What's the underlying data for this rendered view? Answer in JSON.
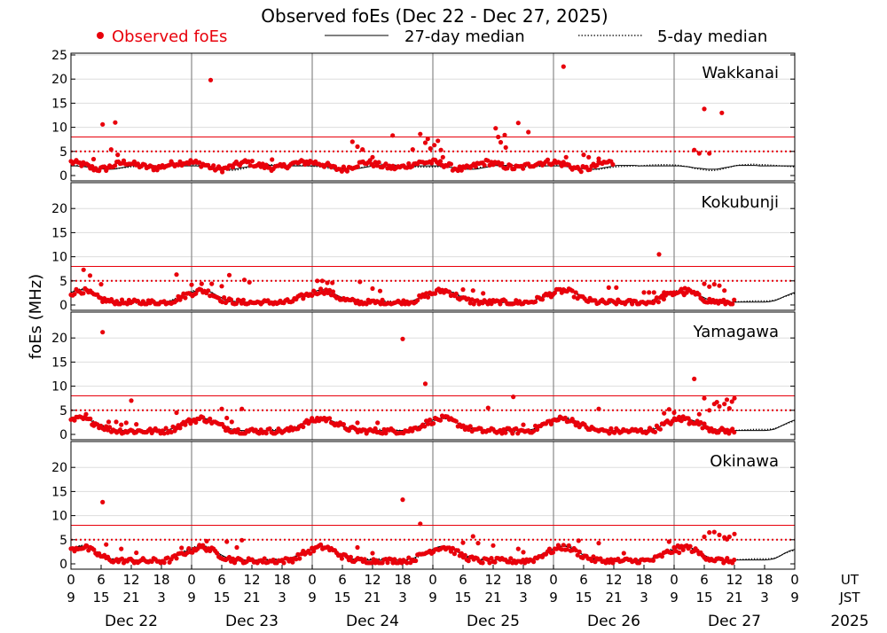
{
  "title": "Observed foEs (Dec 22 - Dec 27, 2025)",
  "legend": {
    "observed_label": "Observed foEs",
    "median27_label": "27-day median",
    "median5_label": "5-day median"
  },
  "ylabel": "foEs (MHz)",
  "colors": {
    "observed": "#e8000b",
    "median": "#000000",
    "thresholds": "#e8000b",
    "grid": "#dddddd",
    "day_separator": "#888888"
  },
  "x_axis": {
    "ut_label": "UT",
    "jst_label": "JST",
    "year_label": "2025",
    "ut_ticks": [
      "0",
      "6",
      "12",
      "18",
      "0",
      "6",
      "12",
      "18",
      "0",
      "6",
      "12",
      "18",
      "0",
      "6",
      "12",
      "18",
      "0",
      "6",
      "12",
      "18",
      "0",
      "6",
      "12",
      "18",
      "0"
    ],
    "jst_ticks": [
      "9",
      "15",
      "21",
      "3",
      "9",
      "15",
      "21",
      "3",
      "9",
      "15",
      "21",
      "3",
      "9",
      "15",
      "21",
      "3",
      "9",
      "15",
      "21",
      "3",
      "9",
      "15",
      "21",
      "3",
      "9"
    ],
    "days": [
      "Dec 22",
      "Dec 23",
      "Dec 24",
      "Dec 25",
      "Dec 26",
      "Dec 27"
    ]
  },
  "chart_data": [
    {
      "type": "scatter",
      "station": "Wakkanai",
      "x_unit": "hours since Dec 22 00 UT",
      "xlim": [
        0,
        144
      ],
      "ylim": [
        0,
        25
      ],
      "yticks": [
        "0",
        "5",
        "10",
        "15",
        "20",
        "25"
      ],
      "thresholds": {
        "solid": 8,
        "dotted": 5
      },
      "median_pattern": [
        2.0,
        2.0,
        1.9,
        1.8,
        1.6,
        1.5,
        1.4,
        1.3,
        1.3,
        1.4,
        1.6,
        1.8,
        2.0,
        2.1,
        2.1,
        2.1,
        2.1,
        2.0,
        2.0,
        2.0,
        2.0,
        2.0,
        2.0,
        2.0
      ],
      "observed_baseline": [
        2.8,
        2.6,
        2.4,
        2.1,
        1.6,
        1.4,
        1.3,
        1.5,
        1.9,
        2.3,
        2.6,
        2.8,
        2.5,
        2.2,
        2.0,
        1.8,
        1.6,
        1.6,
        1.8,
        2.1,
        2.4,
        2.6,
        2.7,
        2.8
      ],
      "observed_until": 108,
      "outliers": [
        [
          6.3,
          10.6
        ],
        [
          8.8,
          11
        ],
        [
          8,
          5.4
        ],
        [
          9.3,
          4.3
        ],
        [
          4.5,
          3.4
        ],
        [
          27.8,
          19.8
        ],
        [
          35,
          2.8
        ],
        [
          40,
          3.3
        ],
        [
          56,
          7
        ],
        [
          57,
          6
        ],
        [
          58,
          5.4
        ],
        [
          60,
          3.8
        ],
        [
          64,
          8.3
        ],
        [
          68,
          5.4
        ],
        [
          69.5,
          8.6
        ],
        [
          70.5,
          6.8
        ],
        [
          71,
          7.6
        ],
        [
          71.5,
          5.6
        ],
        [
          72.3,
          6.3
        ],
        [
          73,
          7.2
        ],
        [
          73.6,
          5.3
        ],
        [
          74,
          3.8
        ],
        [
          84.5,
          9.8
        ],
        [
          85,
          8
        ],
        [
          85.5,
          6.9
        ],
        [
          86.3,
          8.4
        ],
        [
          86.5,
          5.8
        ],
        [
          89,
          10.9
        ],
        [
          91,
          9
        ],
        [
          98,
          22.6
        ],
        [
          98.5,
          3.8
        ],
        [
          102,
          4.3
        ],
        [
          103,
          3.8
        ],
        [
          105,
          3.5
        ],
        [
          124,
          5.3
        ],
        [
          125,
          4.6
        ],
        [
          126,
          13.8
        ],
        [
          127,
          4.6
        ],
        [
          129.5,
          13
        ]
      ]
    },
    {
      "type": "scatter",
      "station": "Kokubunji",
      "x_unit": "hours since Dec 22 00 UT",
      "xlim": [
        0,
        144
      ],
      "ylim": [
        0,
        25
      ],
      "yticks": [
        "0",
        "5",
        "10",
        "15",
        "20"
      ],
      "thresholds": {
        "solid": 8,
        "dotted": 5
      },
      "median_pattern": [
        2.6,
        3.0,
        3.2,
        3.0,
        2.6,
        2.0,
        1.5,
        1.0,
        0.8,
        0.7,
        0.6,
        0.6,
        0.6,
        0.6,
        0.6,
        0.6,
        0.6,
        0.6,
        0.6,
        0.7,
        0.9,
        1.3,
        1.8,
        2.2
      ],
      "observed_baseline": [
        2.4,
        2.8,
        3.0,
        2.8,
        2.3,
        1.7,
        1.2,
        0.9,
        0.7,
        0.6,
        0.5,
        0.5,
        0.5,
        0.5,
        0.5,
        0.5,
        0.5,
        0.5,
        0.5,
        0.6,
        0.8,
        1.2,
        1.7,
        2.1
      ],
      "observed_until": 132,
      "outliers": [
        [
          2.5,
          7.3
        ],
        [
          3.8,
          6.1
        ],
        [
          6,
          4.3
        ],
        [
          21,
          6.3
        ],
        [
          24,
          4.2
        ],
        [
          26,
          4.4
        ],
        [
          28,
          4.4
        ],
        [
          30,
          3.9
        ],
        [
          31.5,
          6.2
        ],
        [
          34.5,
          5.2
        ],
        [
          35.5,
          4.7
        ],
        [
          49,
          5
        ],
        [
          50,
          5
        ],
        [
          51,
          4.6
        ],
        [
          52,
          4.6
        ],
        [
          57.5,
          4.8
        ],
        [
          60,
          3.4
        ],
        [
          61.5,
          2.9
        ],
        [
          78,
          3.2
        ],
        [
          80,
          3
        ],
        [
          82,
          2.4
        ],
        [
          107,
          3.6
        ],
        [
          108.5,
          3.6
        ],
        [
          114,
          2.6
        ],
        [
          115,
          2.6
        ],
        [
          116,
          2.6
        ],
        [
          117,
          10.5
        ],
        [
          118,
          2.6
        ],
        [
          119,
          2.4
        ],
        [
          120,
          2.6
        ],
        [
          122,
          2.1
        ],
        [
          126,
          4.4
        ],
        [
          127,
          3.8
        ],
        [
          128,
          4.3
        ],
        [
          129,
          4
        ],
        [
          130,
          3
        ]
      ]
    },
    {
      "type": "scatter",
      "station": "Yamagawa",
      "x_unit": "hours since Dec 22 00 UT",
      "xlim": [
        0,
        144
      ],
      "ylim": [
        0,
        25
      ],
      "yticks": [
        "0",
        "5",
        "10",
        "15",
        "20"
      ],
      "thresholds": {
        "solid": 8,
        "dotted": 5
      },
      "median_pattern": [
        3.0,
        3.3,
        3.4,
        3.2,
        2.8,
        2.3,
        1.8,
        1.4,
        1.1,
        0.9,
        0.8,
        0.8,
        0.8,
        0.8,
        0.8,
        0.8,
        0.8,
        0.8,
        0.8,
        0.9,
        1.1,
        1.6,
        2.1,
        2.6
      ],
      "observed_baseline": [
        2.8,
        3.1,
        3.3,
        3.1,
        2.7,
        2.2,
        1.7,
        1.3,
        1.0,
        0.8,
        0.7,
        0.7,
        0.7,
        0.7,
        0.7,
        0.7,
        0.7,
        0.7,
        0.7,
        0.8,
        1.0,
        1.5,
        2.0,
        2.5
      ],
      "observed_until": 132,
      "outliers": [
        [
          3,
          4.2
        ],
        [
          4.5,
          2.3
        ],
        [
          6.3,
          21.2
        ],
        [
          7.5,
          2.6
        ],
        [
          9,
          2.6
        ],
        [
          10,
          2
        ],
        [
          11,
          2.4
        ],
        [
          12,
          7
        ],
        [
          13,
          2.1
        ],
        [
          21,
          4.5
        ],
        [
          30,
          5.3
        ],
        [
          31,
          3.4
        ],
        [
          32,
          2.6
        ],
        [
          34,
          5.3
        ],
        [
          57,
          2.4
        ],
        [
          61,
          2.4
        ],
        [
          66,
          19.8
        ],
        [
          70.5,
          10.5
        ],
        [
          83,
          5.5
        ],
        [
          88,
          7.8
        ],
        [
          90,
          2
        ],
        [
          105,
          5.3
        ],
        [
          118,
          4.4
        ],
        [
          119,
          5.2
        ],
        [
          120,
          4.5
        ],
        [
          121,
          3.6
        ],
        [
          123,
          2.2
        ],
        [
          124,
          11.5
        ],
        [
          125,
          4.2
        ],
        [
          126,
          7.5
        ],
        [
          127,
          5
        ],
        [
          128,
          6.3
        ],
        [
          128.5,
          6.7
        ],
        [
          129,
          5.8
        ],
        [
          130,
          6.3
        ],
        [
          130.5,
          7.2
        ],
        [
          131,
          5.4
        ],
        [
          131.5,
          6.8
        ],
        [
          132,
          7.5
        ]
      ]
    },
    {
      "type": "scatter",
      "station": "Okinawa",
      "x_unit": "hours since Dec 22 00 UT",
      "xlim": [
        0,
        144
      ],
      "ylim": [
        0,
        25
      ],
      "yticks": [
        "0",
        "5",
        "10",
        "15",
        "20"
      ],
      "thresholds": {
        "solid": 8,
        "dotted": 5
      },
      "median_pattern": [
        3.0,
        3.5,
        3.7,
        3.5,
        3.0,
        2.4,
        1.8,
        1.3,
        1.0,
        0.9,
        0.8,
        0.8,
        0.8,
        0.8,
        0.8,
        0.8,
        0.8,
        0.8,
        0.8,
        0.9,
        1.1,
        1.6,
        2.2,
        2.7
      ],
      "observed_baseline": [
        2.8,
        3.3,
        3.5,
        3.3,
        2.8,
        2.2,
        1.6,
        1.2,
        0.9,
        0.7,
        0.6,
        0.6,
        0.6,
        0.6,
        0.6,
        0.6,
        0.6,
        0.6,
        0.6,
        0.7,
        0.9,
        1.4,
        2.0,
        2.5
      ],
      "observed_until": 132,
      "outliers": [
        [
          3,
          3.8
        ],
        [
          6.3,
          12.8
        ],
        [
          7,
          4
        ],
        [
          10,
          3.1
        ],
        [
          13,
          2.3
        ],
        [
          22,
          3.3
        ],
        [
          27,
          4.7
        ],
        [
          31,
          4.6
        ],
        [
          33,
          3.4
        ],
        [
          34,
          4.9
        ],
        [
          57,
          3.4
        ],
        [
          60,
          2.2
        ],
        [
          66,
          13.3
        ],
        [
          69.5,
          8.3
        ],
        [
          78,
          4.4
        ],
        [
          80,
          5.7
        ],
        [
          81,
          4.3
        ],
        [
          84,
          3.8
        ],
        [
          89,
          3.1
        ],
        [
          90,
          2.4
        ],
        [
          101,
          4.8
        ],
        [
          105,
          4.3
        ],
        [
          110,
          2.2
        ],
        [
          119,
          4.6
        ],
        [
          120,
          3.4
        ],
        [
          121,
          2.3
        ],
        [
          126,
          5.6
        ],
        [
          127,
          6.5
        ],
        [
          128,
          6.6
        ],
        [
          129,
          6
        ],
        [
          130,
          5.5
        ],
        [
          130.5,
          5.1
        ],
        [
          131,
          5.6
        ],
        [
          132,
          6.2
        ]
      ]
    }
  ]
}
